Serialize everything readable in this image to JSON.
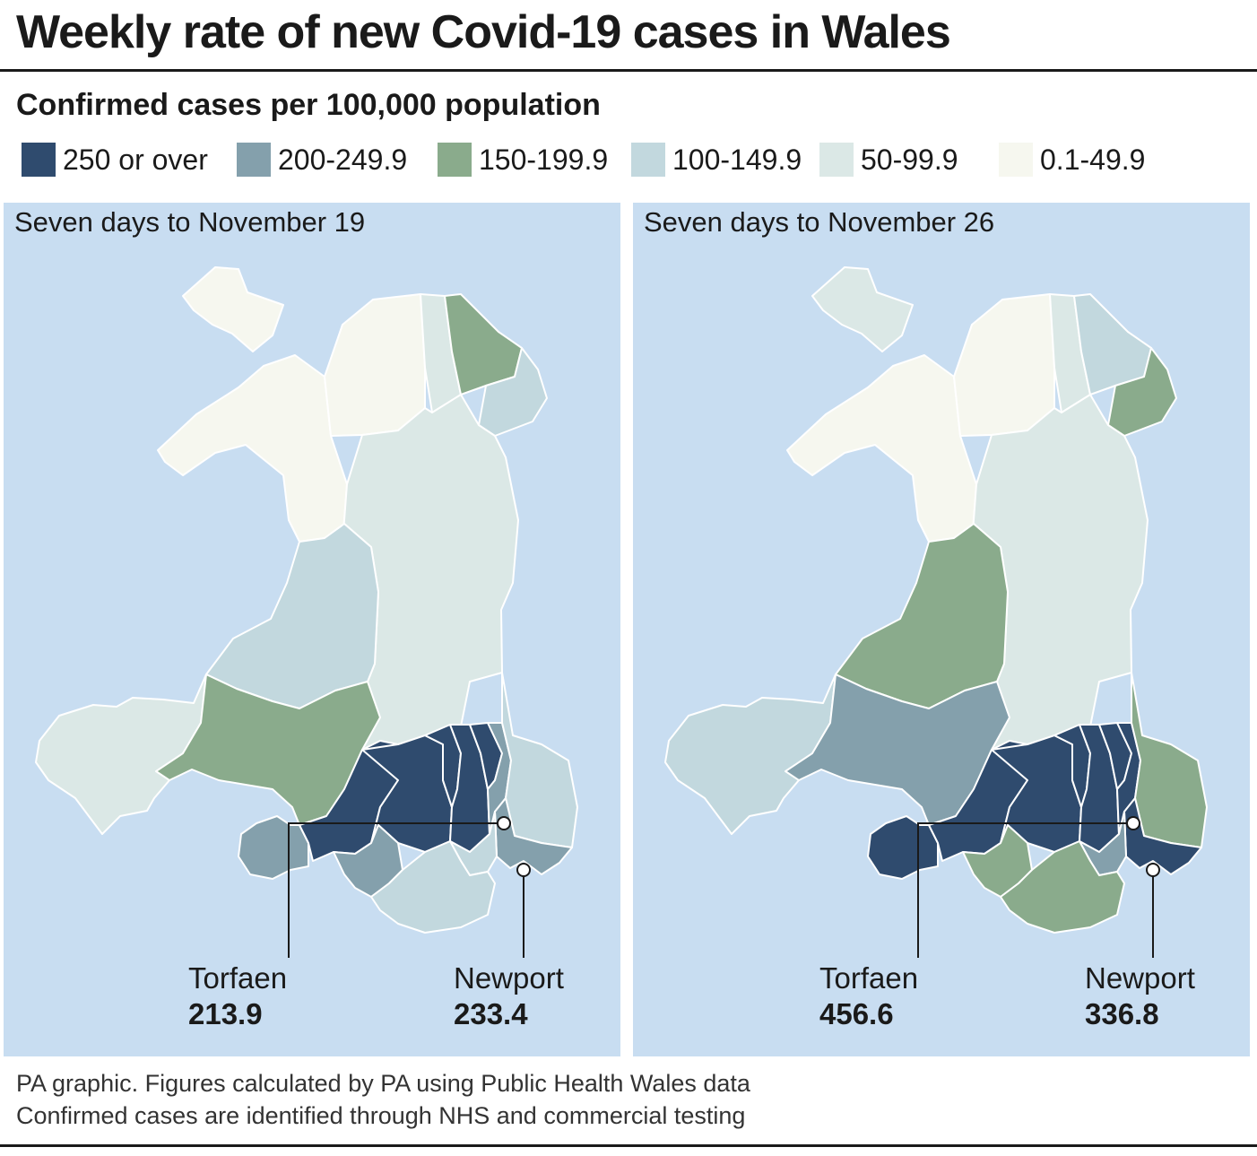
{
  "title": "Weekly rate of new Covid-19 cases in Wales",
  "subtitle": "Confirmed cases per 100,000 population",
  "legend": [
    {
      "label": "250 or over",
      "color": "#2f4b6e"
    },
    {
      "label": "200-249.9",
      "color": "#84a0ac"
    },
    {
      "label": "150-199.9",
      "color": "#8aab8c"
    },
    {
      "label": "100-149.9",
      "color": "#c2d8de"
    },
    {
      "label": "50-99.9",
      "color": "#dbe8e6"
    },
    {
      "label": "0.1-49.9",
      "color": "#f6f7ef"
    }
  ],
  "colors": {
    "sea": "#c8ddf1",
    "border": "#ffffff"
  },
  "panels": [
    {
      "title": "Seven days to November 19",
      "callouts": [
        {
          "name": "Torfaen",
          "value": "213.9"
        },
        {
          "name": "Newport",
          "value": "233.4"
        }
      ],
      "area_bands": {
        "anglesey": 5,
        "gwynedd": 5,
        "conwy": 5,
        "denbighshire": 4,
        "flintshire": 2,
        "wrexham": 3,
        "powys": 4,
        "ceredigion": 3,
        "pembrokeshire": 4,
        "carmarthenshire": 2,
        "swansea": 1,
        "neath_port_talbot": 0,
        "bridgend": 1,
        "rhondda_cynon_taf": 0,
        "merthyr_tydfil": 0,
        "caerphilly": 0,
        "blaenau_gwent": 0,
        "torfaen": 1,
        "monmouthshire": 3,
        "newport": 1,
        "cardiff": 3,
        "vale_of_glamorgan": 3
      }
    },
    {
      "title": "Seven days to November 26",
      "callouts": [
        {
          "name": "Torfaen",
          "value": "456.6"
        },
        {
          "name": "Newport",
          "value": "336.8"
        }
      ],
      "area_bands": {
        "anglesey": 4,
        "gwynedd": 5,
        "conwy": 5,
        "denbighshire": 4,
        "flintshire": 3,
        "wrexham": 2,
        "powys": 4,
        "ceredigion": 2,
        "pembrokeshire": 3,
        "carmarthenshire": 1,
        "swansea": 0,
        "neath_port_talbot": 0,
        "bridgend": 2,
        "rhondda_cynon_taf": 0,
        "merthyr_tydfil": 0,
        "caerphilly": 0,
        "blaenau_gwent": 0,
        "torfaen": 0,
        "monmouthshire": 2,
        "newport": 0,
        "cardiff": 1,
        "vale_of_glamorgan": 2
      }
    }
  ],
  "footer": [
    "PA graphic. Figures calculated by PA using Public Health Wales data",
    "Confirmed cases are identified through NHS and commercial testing"
  ]
}
